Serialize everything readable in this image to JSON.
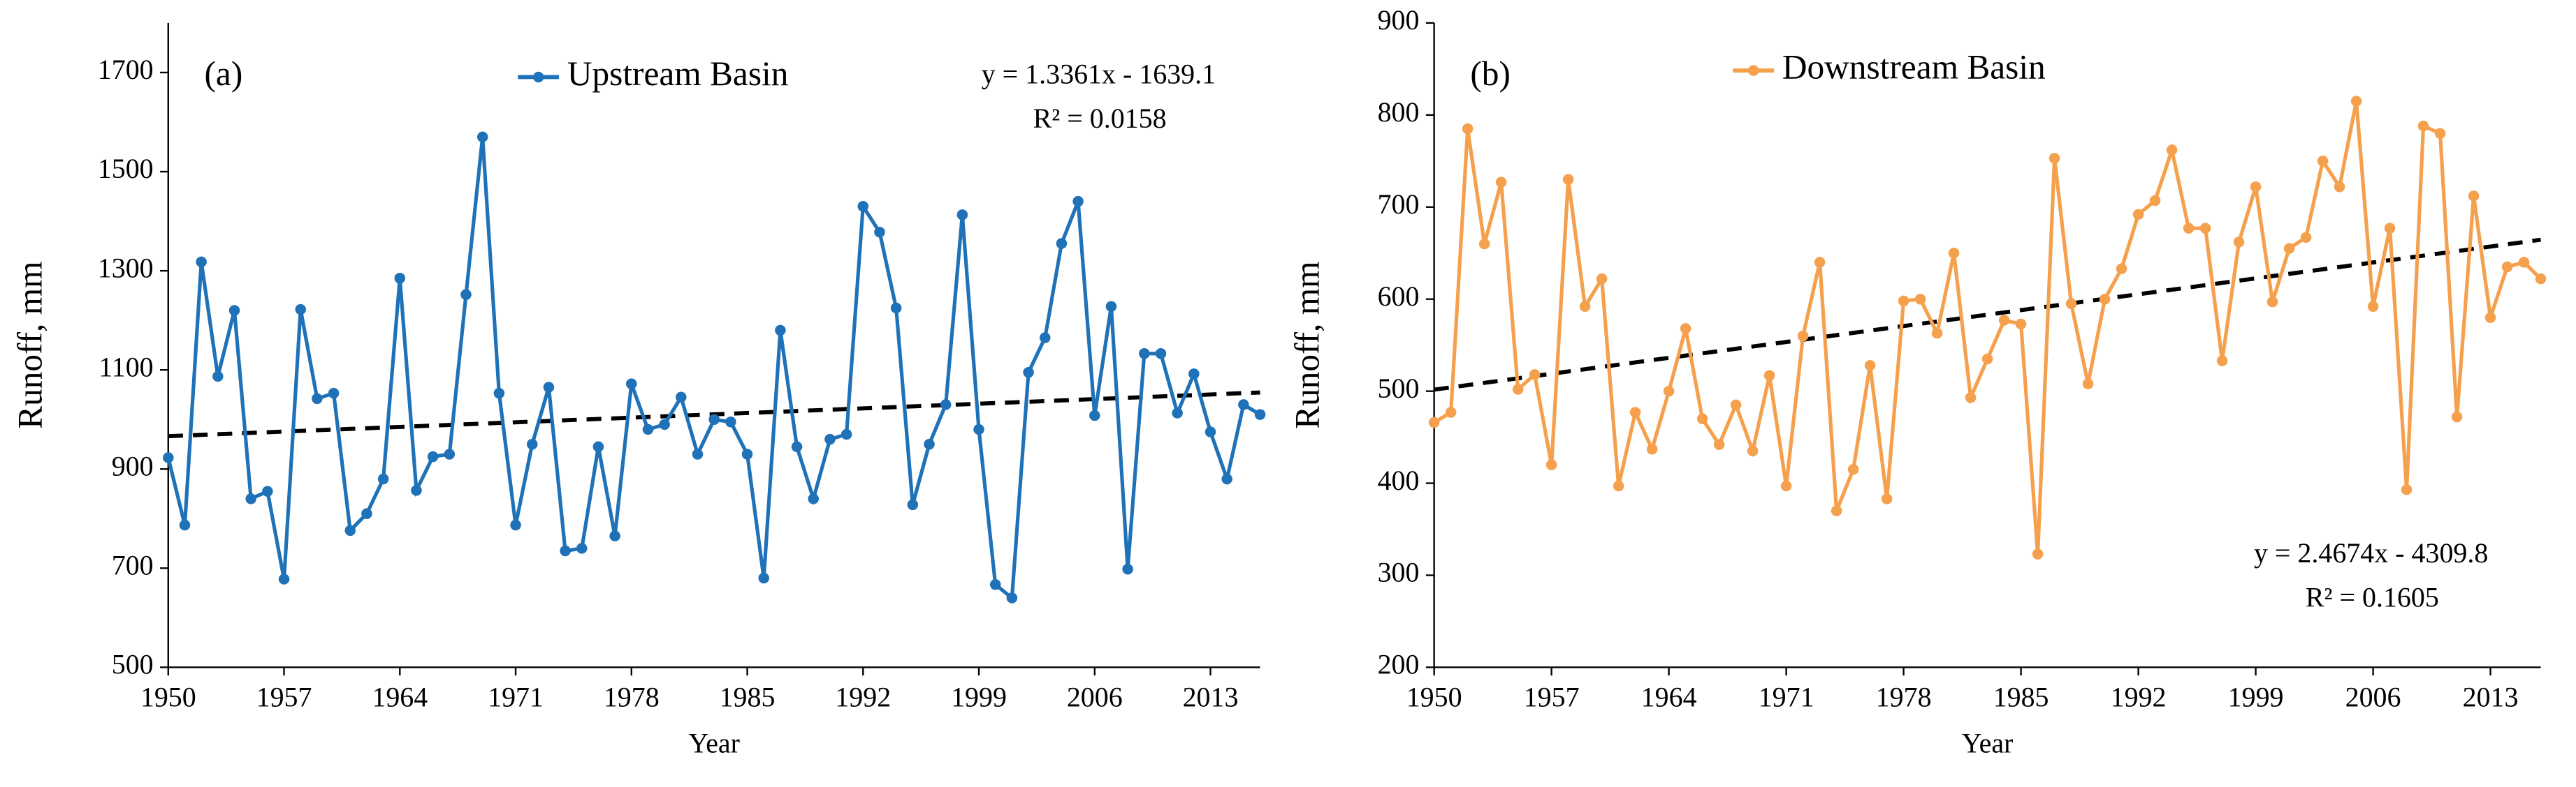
{
  "chart_data": [
    {
      "type": "line",
      "panel_label": "(a)",
      "x_label": "Year",
      "y_label": "Runoff, mm",
      "x": [
        1950,
        1951,
        1952,
        1953,
        1954,
        1955,
        1956,
        1957,
        1958,
        1959,
        1960,
        1961,
        1962,
        1963,
        1964,
        1965,
        1966,
        1967,
        1968,
        1969,
        1970,
        1971,
        1972,
        1973,
        1974,
        1975,
        1976,
        1977,
        1978,
        1979,
        1980,
        1981,
        1982,
        1983,
        1984,
        1985,
        1986,
        1987,
        1988,
        1989,
        1990,
        1991,
        1992,
        1993,
        1994,
        1995,
        1996,
        1997,
        1998,
        1999,
        2000,
        2001,
        2002,
        2003,
        2004,
        2005,
        2006,
        2007,
        2008,
        2009,
        2010,
        2011,
        2012,
        2013,
        2014,
        2015,
        2016
      ],
      "series": [
        {
          "name": "Upstream Basin",
          "color": "#1f72b8",
          "values": [
            923,
            787,
            1318,
            1087,
            1220,
            840,
            855,
            678,
            1222,
            1042,
            1053,
            776,
            810,
            880,
            1285,
            857,
            925,
            930,
            1252,
            1570,
            1053,
            787,
            950,
            1065,
            735,
            740,
            945,
            765,
            1072,
            980,
            990,
            1045,
            930,
            1000,
            995,
            930,
            680,
            1180,
            945,
            840,
            960,
            970,
            1430,
            1378,
            1225,
            828,
            950,
            1030,
            1413,
            980,
            667,
            640,
            1095,
            1165,
            1355,
            1440,
            1008,
            1228,
            698,
            1133,
            1133,
            1013,
            1092,
            975,
            880,
            1030,
            1010
          ]
        }
      ],
      "trend": {
        "slope": 1.3361,
        "intercept": -1639.1
      },
      "trend_equation": "y = 1.3361x - 1639.1",
      "trend_r2": "R² = 0.0158",
      "xlim": [
        1950,
        2016
      ],
      "xticks": [
        1950,
        1957,
        1964,
        1971,
        1978,
        1985,
        1992,
        1999,
        2006,
        2013
      ],
      "ylim": [
        500,
        1800
      ],
      "yticks": [
        500,
        700,
        900,
        1100,
        1300,
        1500,
        1700
      ]
    },
    {
      "type": "line",
      "panel_label": "(b)",
      "x_label": "Year",
      "y_label": "Runoff, mm",
      "x": [
        1950,
        1951,
        1952,
        1953,
        1954,
        1955,
        1956,
        1957,
        1958,
        1959,
        1960,
        1961,
        1962,
        1963,
        1964,
        1965,
        1966,
        1967,
        1968,
        1969,
        1970,
        1971,
        1972,
        1973,
        1974,
        1975,
        1976,
        1977,
        1978,
        1979,
        1980,
        1981,
        1982,
        1983,
        1984,
        1985,
        1986,
        1987,
        1988,
        1989,
        1990,
        1991,
        1992,
        1993,
        1994,
        1995,
        1996,
        1997,
        1998,
        1999,
        2000,
        2001,
        2002,
        2003,
        2004,
        2005,
        2006,
        2007,
        2008,
        2009,
        2010,
        2011,
        2012,
        2013,
        2014,
        2015,
        2016
      ],
      "series": [
        {
          "name": "Downstream Basin",
          "color": "#f5a04c",
          "values": [
            466,
            477,
            785,
            660,
            727,
            502,
            518,
            420,
            730,
            592,
            622,
            397,
            477,
            437,
            500,
            568,
            470,
            442,
            485,
            435,
            517,
            397,
            560,
            640,
            370,
            415,
            528,
            383,
            598,
            600,
            563,
            650,
            493,
            535,
            577,
            573,
            323,
            753,
            595,
            508,
            600,
            633,
            692,
            707,
            762,
            677,
            677,
            533,
            662,
            722,
            597,
            655,
            667,
            750,
            722,
            815,
            592,
            677,
            393,
            788,
            780,
            472,
            712,
            580,
            635,
            640,
            622
          ]
        }
      ],
      "trend": {
        "slope": 2.4674,
        "intercept": -4309.8
      },
      "trend_equation": "y = 2.4674x - 4309.8",
      "trend_r2": "R² = 0.1605",
      "xlim": [
        1950,
        2016
      ],
      "xticks": [
        1950,
        1957,
        1964,
        1971,
        1978,
        1985,
        1992,
        1999,
        2006,
        2013
      ],
      "ylim": [
        200,
        900
      ],
      "yticks": [
        200,
        300,
        400,
        500,
        600,
        700,
        800,
        900
      ]
    }
  ]
}
